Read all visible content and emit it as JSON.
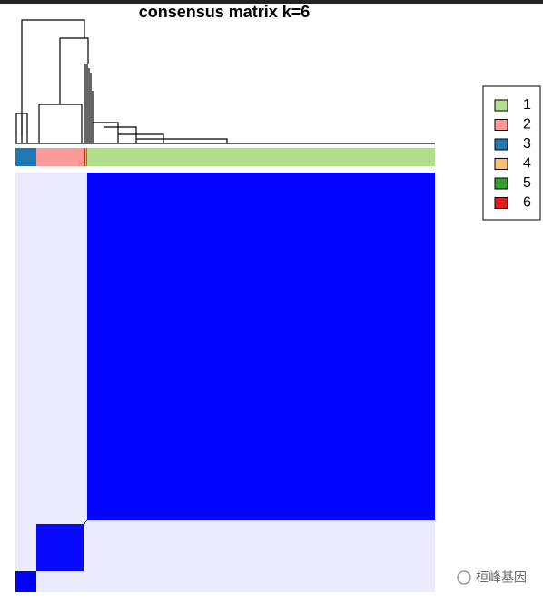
{
  "chart_data": {
    "type": "consensus",
    "title": "consensus matrix k=6",
    "series": [
      {
        "name": "3",
        "color": "#1f78b4",
        "size": 23,
        "consensus": 1
      },
      {
        "name": "2",
        "color": "#fb9a99",
        "size": 52,
        "consensus": 0.97
      },
      {
        "name": "6",
        "color": "#e31a1c",
        "size": 2,
        "consensus": 0.9
      },
      {
        "name": "4",
        "color": "#fdbf6f",
        "size": 1,
        "consensus": 0.9
      },
      {
        "name": "5",
        "color": "#33a02c",
        "size": 1,
        "consensus": 0.9
      },
      {
        "name": "1",
        "color": "#b2df8a",
        "size": 383,
        "consensus": 0.98
      }
    ],
    "between": 0.08,
    "low_color": "#ffffff",
    "high_color": "#0000ff"
  },
  "watermark": "桓峰基因"
}
